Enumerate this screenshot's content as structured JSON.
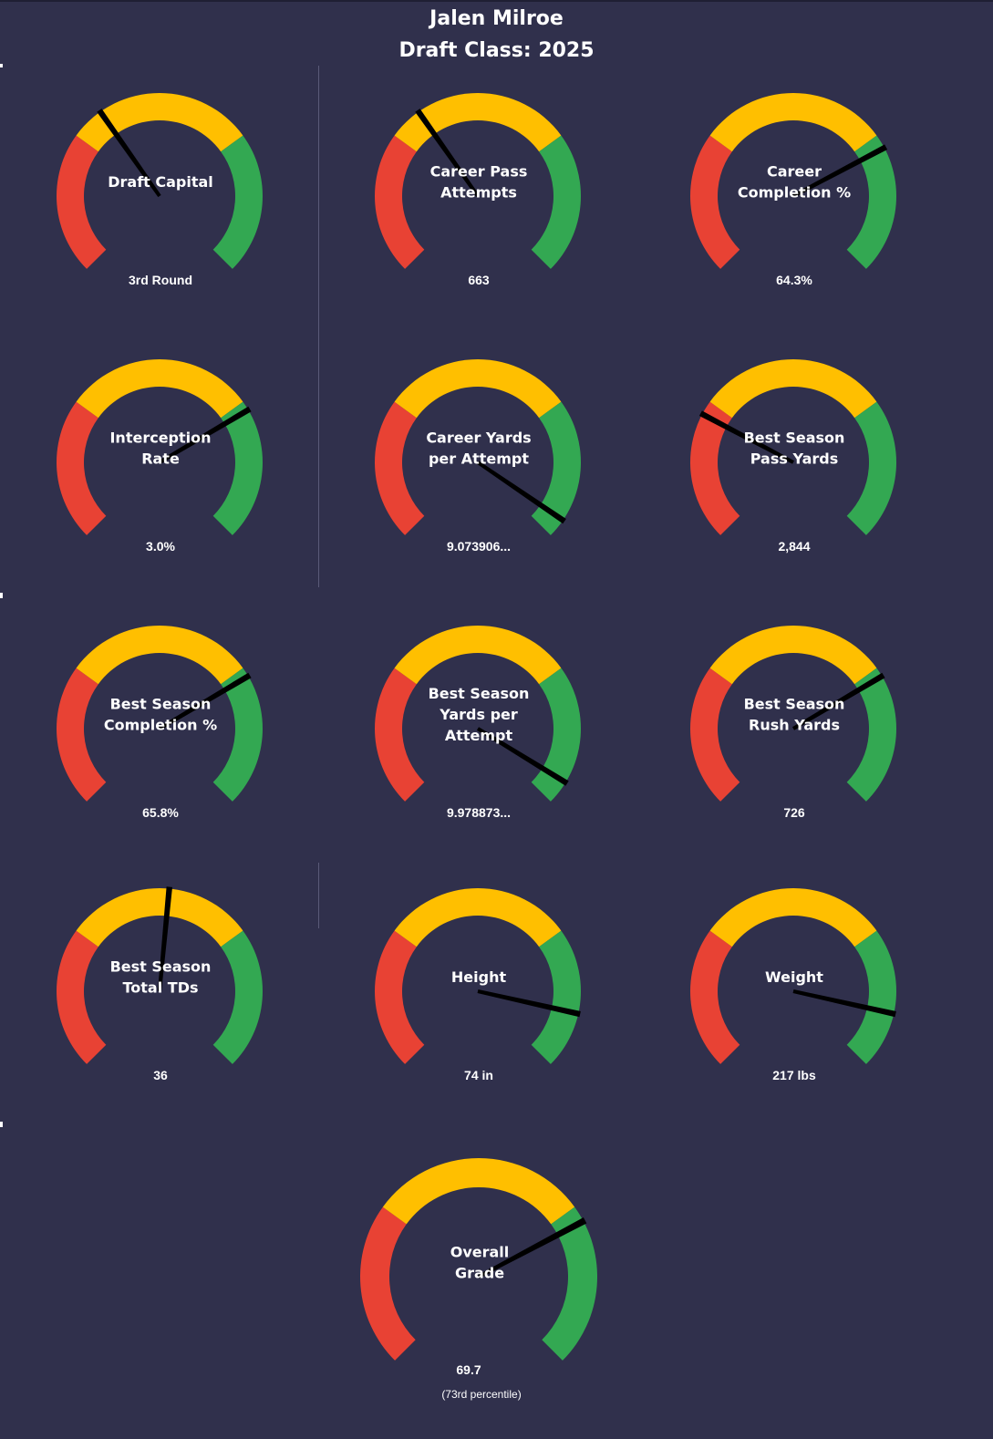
{
  "header": {
    "player_name": "Jalen Milroe",
    "draft_class": "Draft Class: 2025"
  },
  "colors": {
    "background": "#30304c",
    "low": "#e84234",
    "mid": "#ffbf00",
    "high": "#33a852",
    "needle": "#000000",
    "text": "#ffffff"
  },
  "chart_data": {
    "type": "gauge",
    "zones": [
      {
        "name": "low",
        "color": "#e84234",
        "from": 0,
        "to": 0.3
      },
      {
        "name": "mid",
        "color": "#ffbf00",
        "from": 0.3,
        "to": 0.7
      },
      {
        "name": "high",
        "color": "#33a852",
        "from": 0.7,
        "to": 1.0
      }
    ],
    "gauges": [
      {
        "label_lines": [
          "Draft Capital"
        ],
        "value": "3rd Round",
        "needle": 0.37
      },
      {
        "label_lines": [
          "Career Pass",
          "Attempts"
        ],
        "value": "663",
        "needle": 0.37
      },
      {
        "label_lines": [
          "Career",
          "Completion %"
        ],
        "value": "64.3%",
        "needle": 0.73
      },
      {
        "label_lines": [
          "Interception",
          "Rate"
        ],
        "value": "3.0%",
        "needle": 0.72
      },
      {
        "label_lines": [
          "Career Yards",
          "per Attempt"
        ],
        "value": "9.073906...",
        "needle": 0.96
      },
      {
        "label_lines": [
          "Best Season",
          "Pass Yards"
        ],
        "value": "2,844",
        "needle": 0.27
      },
      {
        "label_lines": [
          "Best Season",
          "Completion %"
        ],
        "value": "65.8%",
        "needle": 0.72
      },
      {
        "label_lines": [
          "Best Season",
          "Yards per",
          "Attempt"
        ],
        "value": "9.978873...",
        "needle": 0.95
      },
      {
        "label_lines": [
          "Best Season",
          "Rush Yards"
        ],
        "value": "726",
        "needle": 0.72
      },
      {
        "label_lines": [
          "Best Season",
          "Total TDs"
        ],
        "value": "36",
        "needle": 0.52
      },
      {
        "label_lines": [
          "Height"
        ],
        "value": "74 in",
        "needle": 0.88
      },
      {
        "label_lines": [
          "Weight"
        ],
        "value": "217 lbs",
        "needle": 0.88
      }
    ],
    "overall": {
      "label_lines": [
        "Overall",
        "Grade"
      ],
      "value": "69.7",
      "percentile": "(73rd  percentile)",
      "needle": 0.73
    }
  }
}
